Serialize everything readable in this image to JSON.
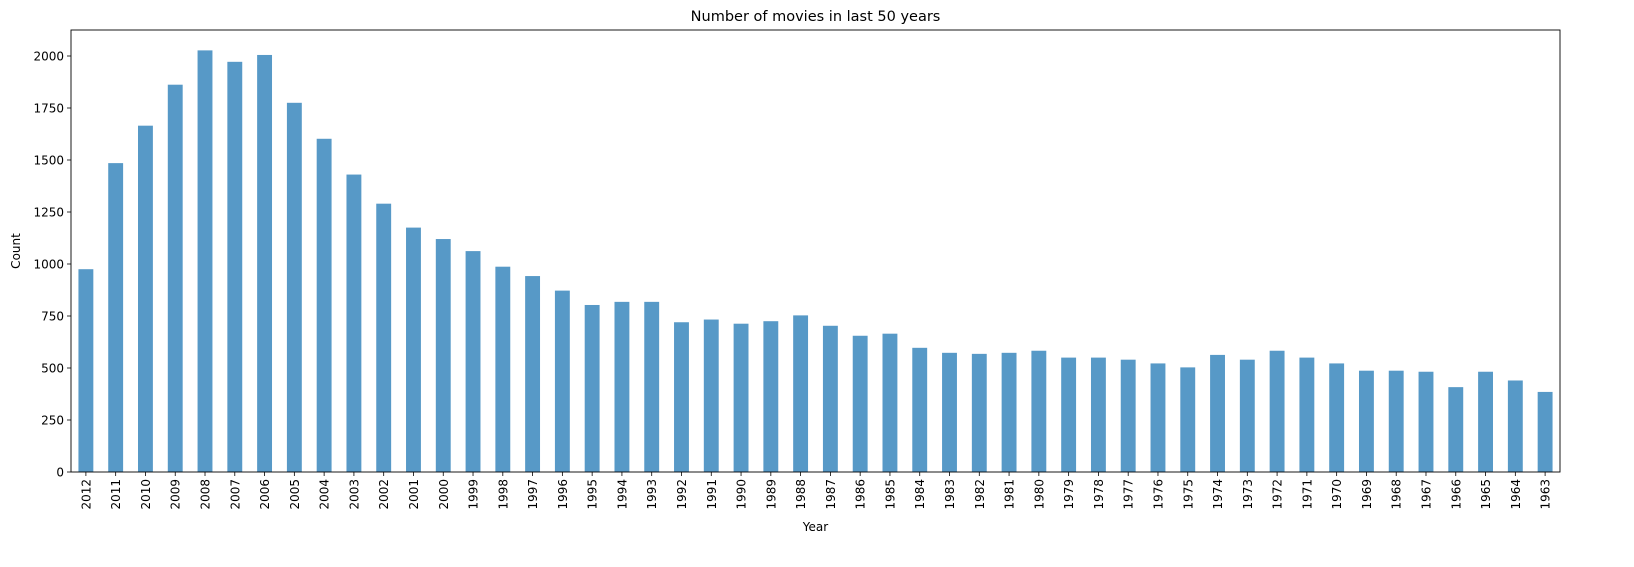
{
  "chart_data": {
    "type": "bar",
    "title": "Number of movies in last 50 years",
    "xlabel": "Year",
    "ylabel": "Count",
    "ylim": [
      0,
      2125
    ],
    "yticks": [
      0,
      250,
      500,
      750,
      1000,
      1250,
      1500,
      1750,
      2000
    ],
    "grid": false,
    "bar_color": "#5799c7",
    "categories": [
      "2012",
      "2011",
      "2010",
      "2009",
      "2008",
      "2007",
      "2006",
      "2005",
      "2004",
      "2003",
      "2002",
      "2001",
      "2000",
      "1999",
      "1998",
      "1997",
      "1996",
      "1995",
      "1994",
      "1993",
      "1992",
      "1991",
      "1990",
      "1989",
      "1988",
      "1987",
      "1986",
      "1985",
      "1984",
      "1983",
      "1982",
      "1981",
      "1980",
      "1979",
      "1978",
      "1977",
      "1976",
      "1975",
      "1974",
      "1973",
      "1972",
      "1971",
      "1970",
      "1969",
      "1968",
      "1967",
      "1966",
      "1965",
      "1964",
      "1963"
    ],
    "values": [
      975,
      1485,
      1665,
      1862,
      2027,
      1972,
      2005,
      1775,
      1602,
      1430,
      1290,
      1175,
      1120,
      1062,
      987,
      942,
      872,
      803,
      818,
      818,
      720,
      733,
      713,
      725,
      753,
      703,
      655,
      665,
      597,
      573,
      568,
      573,
      583,
      550,
      550,
      540,
      522,
      503,
      563,
      540,
      583,
      550,
      522,
      487,
      487,
      482,
      408,
      482,
      440,
      385
    ]
  }
}
